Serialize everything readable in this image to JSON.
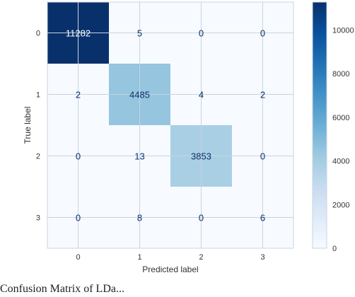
{
  "chart_data": {
    "type": "heatmap",
    "title": "",
    "xlabel": "Predicted label",
    "ylabel": "True label",
    "x_tick_labels": [
      "0",
      "1",
      "2",
      "3"
    ],
    "y_tick_labels": [
      "0",
      "1",
      "2",
      "3"
    ],
    "matrix": [
      [
        11282,
        5,
        0,
        0
      ],
      [
        2,
        4485,
        4,
        2
      ],
      [
        0,
        13,
        3853,
        0
      ],
      [
        0,
        8,
        0,
        6
      ]
    ],
    "colormap": "Blues",
    "colorbar": {
      "min": 0,
      "max": 11282,
      "ticks": [
        0,
        2000,
        4000,
        6000,
        8000,
        10000
      ]
    },
    "grid": true
  },
  "caption": "Confusion Matrix of LDa..."
}
